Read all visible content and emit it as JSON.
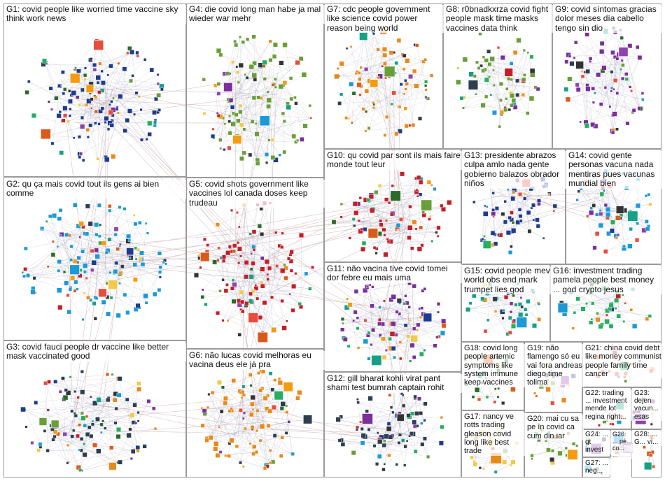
{
  "colors": {
    "background": "#ffffff",
    "box_border": "#9a9a9a",
    "edge": "#c7a4a8",
    "node_palette": [
      "#1f3b8f",
      "#6a9e3a",
      "#c41e2a",
      "#e88a1a",
      "#7a2f9a",
      "#1b9ad6",
      "#2a6b2a",
      "#d95b1a",
      "#333333",
      "#f2c94c",
      "#8e44ad",
      "#16a085",
      "#e74c3c",
      "#2c3e50",
      "#27ae60",
      "#f39c12"
    ]
  },
  "groups": [
    {
      "id": "G1",
      "label": "G1: covid people like worried time vaccine sky think work news"
    },
    {
      "id": "G2",
      "label": "G2: qu ça mais covid tout ils gens ai bien comme"
    },
    {
      "id": "G3",
      "label": "G3: covid fauci people dr vaccine like better mask vaccinated good"
    },
    {
      "id": "G4",
      "label": "G4: die covid long man habe ja mal wieder war mehr"
    },
    {
      "id": "G5",
      "label": "G5: covid shots government like vaccines lol canada doses keep trudeau"
    },
    {
      "id": "G6",
      "label": "G6: não lucas covid melhoras eu vacina deus ele já pra"
    },
    {
      "id": "G7",
      "label": "G7: cdc people government like science covid power reason being world"
    },
    {
      "id": "G8",
      "label": "G8: r0bnadkxrza covid fight people mask time masks vaccines data think"
    },
    {
      "id": "G9",
      "label": "G9: covid síntomas gracias dolor meses día cabello tengo sin dio"
    },
    {
      "id": "G10",
      "label": "G10: qu covid par sont ils mais faire monde tout leur"
    },
    {
      "id": "G11",
      "label": "G11: não vacina tive covid tomei dor febre eu mais uma"
    },
    {
      "id": "G12",
      "label": "G12: gill bharat kohli virat pant shami test bumrah captain rohit"
    },
    {
      "id": "G13",
      "label": "G13: presidente abrazos culpa amlo nada gente gobierno balazos obrador niños"
    },
    {
      "id": "G14",
      "label": "G14: covid gente personas vacuna nada mentiras pues vacunas mundial bien"
    },
    {
      "id": "G15",
      "label": "G15: covid people mev world obs end mark trumpet lies god"
    },
    {
      "id": "G16",
      "label": "G16: investment trading pamela people best money ... god crypto jesus"
    },
    {
      "id": "G17",
      "label": "G17: nancy ve rotts trading gleason covid long like best trade"
    },
    {
      "id": "G18",
      "label": "G18: covid long people artemic symptoms like system immune keep vaccines"
    },
    {
      "id": "G19",
      "label": "G19: não flamengo só eu vai fora andreas diego time tolima"
    },
    {
      "id": "G20",
      "label": "G20: mai cu sa pe în covid ca cum din iar"
    },
    {
      "id": "G21",
      "label": "G21: china covid debt like money communist people family time cancer"
    },
    {
      "id": "G22",
      "label": "G22: trading ... investment mende lot regina right..."
    },
    {
      "id": "G23",
      "label": "G23: dejen vacun... esas"
    },
    {
      "id": "G24",
      "label": "G24: ... gt invest"
    },
    {
      "id": "G25",
      "label": "G25: ..."
    },
    {
      "id": "G26",
      "label": "G26: ... pe... co..."
    },
    {
      "id": "G27",
      "label": "G27: ... neg..."
    },
    {
      "id": "G28",
      "label": "G28: ... G... vi..."
    }
  ]
}
